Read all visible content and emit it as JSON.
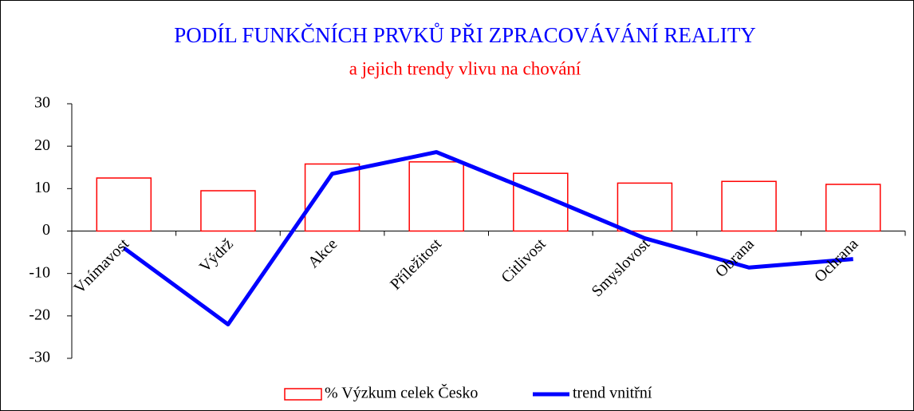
{
  "chart_data": {
    "type": "bar_line",
    "title": "PODÍL FUNKČNÍCH PRVKŮ PŘI ZPRACOVÁVÁNÍ REALITY",
    "subtitle": "a jejich trendy vlivu na chování",
    "title_color": "#0000ff",
    "subtitle_color": "#ff0000",
    "categories": [
      "Vnímavost",
      "Výdrž",
      "Akce",
      "Příležitost",
      "Citlivost",
      "Smyslovost",
      "Obrana",
      "Ochrana"
    ],
    "series": [
      {
        "name": "% Výzkum celek Česko",
        "type": "bar",
        "color": "#ff0000",
        "values": [
          12.5,
          9.5,
          15.8,
          16.3,
          13.6,
          11.3,
          11.7,
          11
        ]
      },
      {
        "name": "trend vnitřní",
        "type": "line",
        "color": "#0000ff",
        "values": [
          -4,
          -22,
          13.5,
          18.6,
          8.6,
          -1.7,
          -8.6,
          -6.6
        ]
      }
    ],
    "ylim": [
      -30,
      30
    ],
    "yticks": [
      -30,
      -20,
      -10,
      0,
      10,
      20,
      30
    ],
    "legend": "bottom"
  }
}
